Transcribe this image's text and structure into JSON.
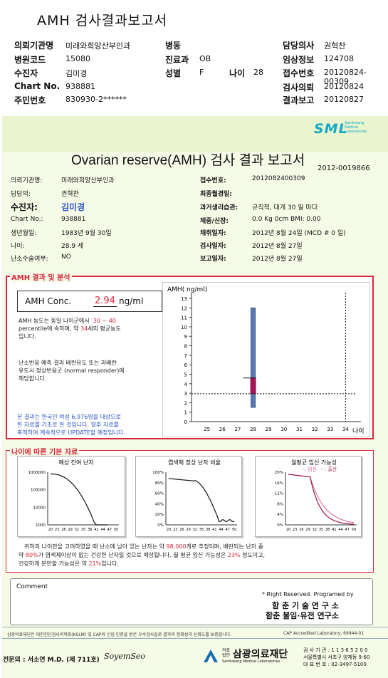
{
  "header": {
    "title": "AMH 검사결과보고서",
    "rows": [
      {
        "k1": "의뢰기관명",
        "v1": "미래와희망산부인과",
        "k2": "병동",
        "v2": "",
        "k3": "",
        "v3": "",
        "k4": "담당의사",
        "v4": "권혁찬"
      },
      {
        "k1": "병원코드",
        "v1": "15080",
        "k2": "진료과",
        "v2": "OB",
        "k3": "",
        "v3": "",
        "k4": "임상정보",
        "v4": "124708"
      },
      {
        "k1": "수진자",
        "v1": "김미경",
        "k2": "성별",
        "v2": "F",
        "k3": "나이",
        "v3": "28",
        "k4": "접수번호",
        "v4": "20120824-00309"
      },
      {
        "k1": "Chart No.",
        "v1": "938881",
        "k2": "",
        "v2": "",
        "k3": "",
        "v3": "",
        "k4": "검사의뢰",
        "v4": "20120824"
      },
      {
        "k1": "주민번호",
        "v1": "830930-2******",
        "k2": "",
        "v2": "",
        "k3": "",
        "v3": "",
        "k4": "결과보고",
        "v4": "20120827"
      }
    ]
  },
  "brand": {
    "name": "SML",
    "sub1": "Samkwang",
    "sub2": "Medical",
    "sub3": "Laboratories",
    "color": "#14a8c8"
  },
  "report": {
    "title": "Ovarian reserve(AMH) 검사 결과 보고서",
    "number": "2012-0019866",
    "left": [
      {
        "k": "의뢰기관명:",
        "v": "미래와희망산부인과"
      },
      {
        "k": "담당의:",
        "v": "권혁찬"
      },
      {
        "k": "수진자:",
        "v": "김미경"
      },
      {
        "k": "Chart No.:",
        "v": "938881"
      },
      {
        "k": "생년월일:",
        "v": "1983년 9월 30일"
      },
      {
        "k": "나이:",
        "v": "28.9 세"
      },
      {
        "k": "난소수술여부:",
        "v": "NO"
      }
    ],
    "right": [
      {
        "k": "접수번호:",
        "v": "2012082400309"
      },
      {
        "k": "최종월경일:",
        "v": ""
      },
      {
        "k": "과거생리습관:",
        "v": "규칙적, 대개  30 일 마다"
      },
      {
        "k": "체중/신장:",
        "v": "0.0 Kg         0cm    BMI:   0.00"
      },
      {
        "k": "채취일자:",
        "v": "2012년 8월 24일   (MCD # 0 일)"
      },
      {
        "k": "검사일자:",
        "v": "2012년 8월 27일"
      },
      {
        "k": "보고일자:",
        "v": "2012년 8월 27일"
      }
    ]
  },
  "amh": {
    "section": "AMH 결과 및 분석",
    "conc_label": "AMH Conc.",
    "conc_value": "2.94",
    "conc_unit": "ng/ml",
    "p1a": "AMH 농도는 동일 나이군에서",
    "p1range": "30 ~ 40",
    "p1b": "percentile에 속하며, 약",
    "p1age": "34",
    "p1c": "세의 평균농도",
    "p1d": "입니다.",
    "p2a": "난소반응 예측 결과 배란유도 또는 과배란",
    "p2b": "유도시 정상반응군 (normal responder)에",
    "p2c": "해당합니다.",
    "p3a": "본 결과는 한국인 여성 6,976명을 대상으로",
    "p3b": "한 자료를 기초로 한 것입니다. 향후 자료를",
    "p3c": "축적하여 계속적으로 UPDATE할 예정입니다."
  },
  "chart_data": [
    {
      "type": "bar",
      "ylabel": "AMH( ng/ml)",
      "xlabel": "나이",
      "x_ticks": [
        25,
        26,
        27,
        28,
        29,
        30,
        31,
        32,
        33,
        34
      ],
      "y_ticks": [
        0,
        1,
        2,
        3,
        4,
        5,
        6,
        7,
        8,
        9,
        10,
        11,
        12,
        13
      ],
      "ylim": [
        0,
        13
      ],
      "range_bar": {
        "x": 28,
        "low": 1.5,
        "high": 12
      },
      "iqr_box": {
        "x": 28,
        "low": 2.9,
        "high": 4.6
      },
      "patient_value": 2.94,
      "patient_age_line": 34
    },
    {
      "type": "line",
      "title": "예상 잔여 난자",
      "x_ticks": [
        20,
        23,
        26,
        29,
        32,
        35,
        38,
        41,
        44,
        47,
        50
      ],
      "y_ticks": [
        "1000000",
        "100000",
        "10000",
        "1000"
      ],
      "yscale": "log",
      "ylim": [
        1000,
        1000000
      ]
    },
    {
      "type": "line",
      "title": "염색체 정상 난자 비율",
      "x_ticks": [
        20,
        23,
        26,
        29,
        32,
        35,
        38,
        41,
        44,
        47,
        50
      ],
      "y_ticks": [
        "100%",
        "80%",
        "60%",
        "40%",
        "20%",
        "0%"
      ],
      "ylim": [
        0,
        100
      ]
    },
    {
      "type": "line",
      "title": "월평균 임신 가능성",
      "legend": [
        "임신",
        "출산"
      ],
      "x_ticks": [
        20,
        23,
        26,
        29,
        32,
        35,
        38,
        41,
        44,
        47,
        50
      ],
      "y_ticks": [
        "20%",
        "16%",
        "12%",
        "8%",
        "4%",
        "0%"
      ],
      "ylim": [
        0,
        20
      ],
      "colors": [
        "#e05a9a",
        "#9a1c40"
      ]
    }
  ],
  "fertility": {
    "section": "나이에 따른 기본 자료",
    "l1a": "귀하의 나이만을 고려하였을 때 난소에 남아 있는 난자는 약",
    "l1num": "98,000",
    "l1b": "개로 추정되며, 배란되는 난자 중",
    "l2a": "약",
    "l2num": "80%",
    "l2b": "가 염색체이상이 없는 건강한 난자일 것으로 예상됩니다. 월 평균 임신 가능성은",
    "l2num2": "23%",
    "l2c": "정도이고,",
    "l3a": "건강하게 분만할 가능성은 약",
    "l3num": "21%",
    "l3b": "입니다."
  },
  "comment": {
    "label": "Comment"
  },
  "footer": {
    "rights": "* Right Reserved. Programed by",
    "org1": "함 춘 기 술  연 구 소",
    "org2": "함춘 불임·유전 연구소",
    "cert": "삼광의료재단은 대한진단검사의학회(KSLM) 및 CAP의 신임 인증을 받은 우수검사실로 결과의 정확성과 신뢰도를 보증합니다.",
    "cap": "CAP  Accredited  Laboratory,  69944-01",
    "doctor": "전문의 : 서소연 M.D. (제 711호)",
    "signature": "SoyemSeo",
    "foundation_prefix": "의료 법인",
    "foundation": "삼광의료재단",
    "foundation_en": "Samkwang Medical Laboratories",
    "reg1": "검 사 기 관 : 1 1 3 6 5 2 0 0",
    "reg2": "서울특별시 서초구 양재동 9-60",
    "reg3": "대 표 번 호 : 02-3497-5100"
  }
}
